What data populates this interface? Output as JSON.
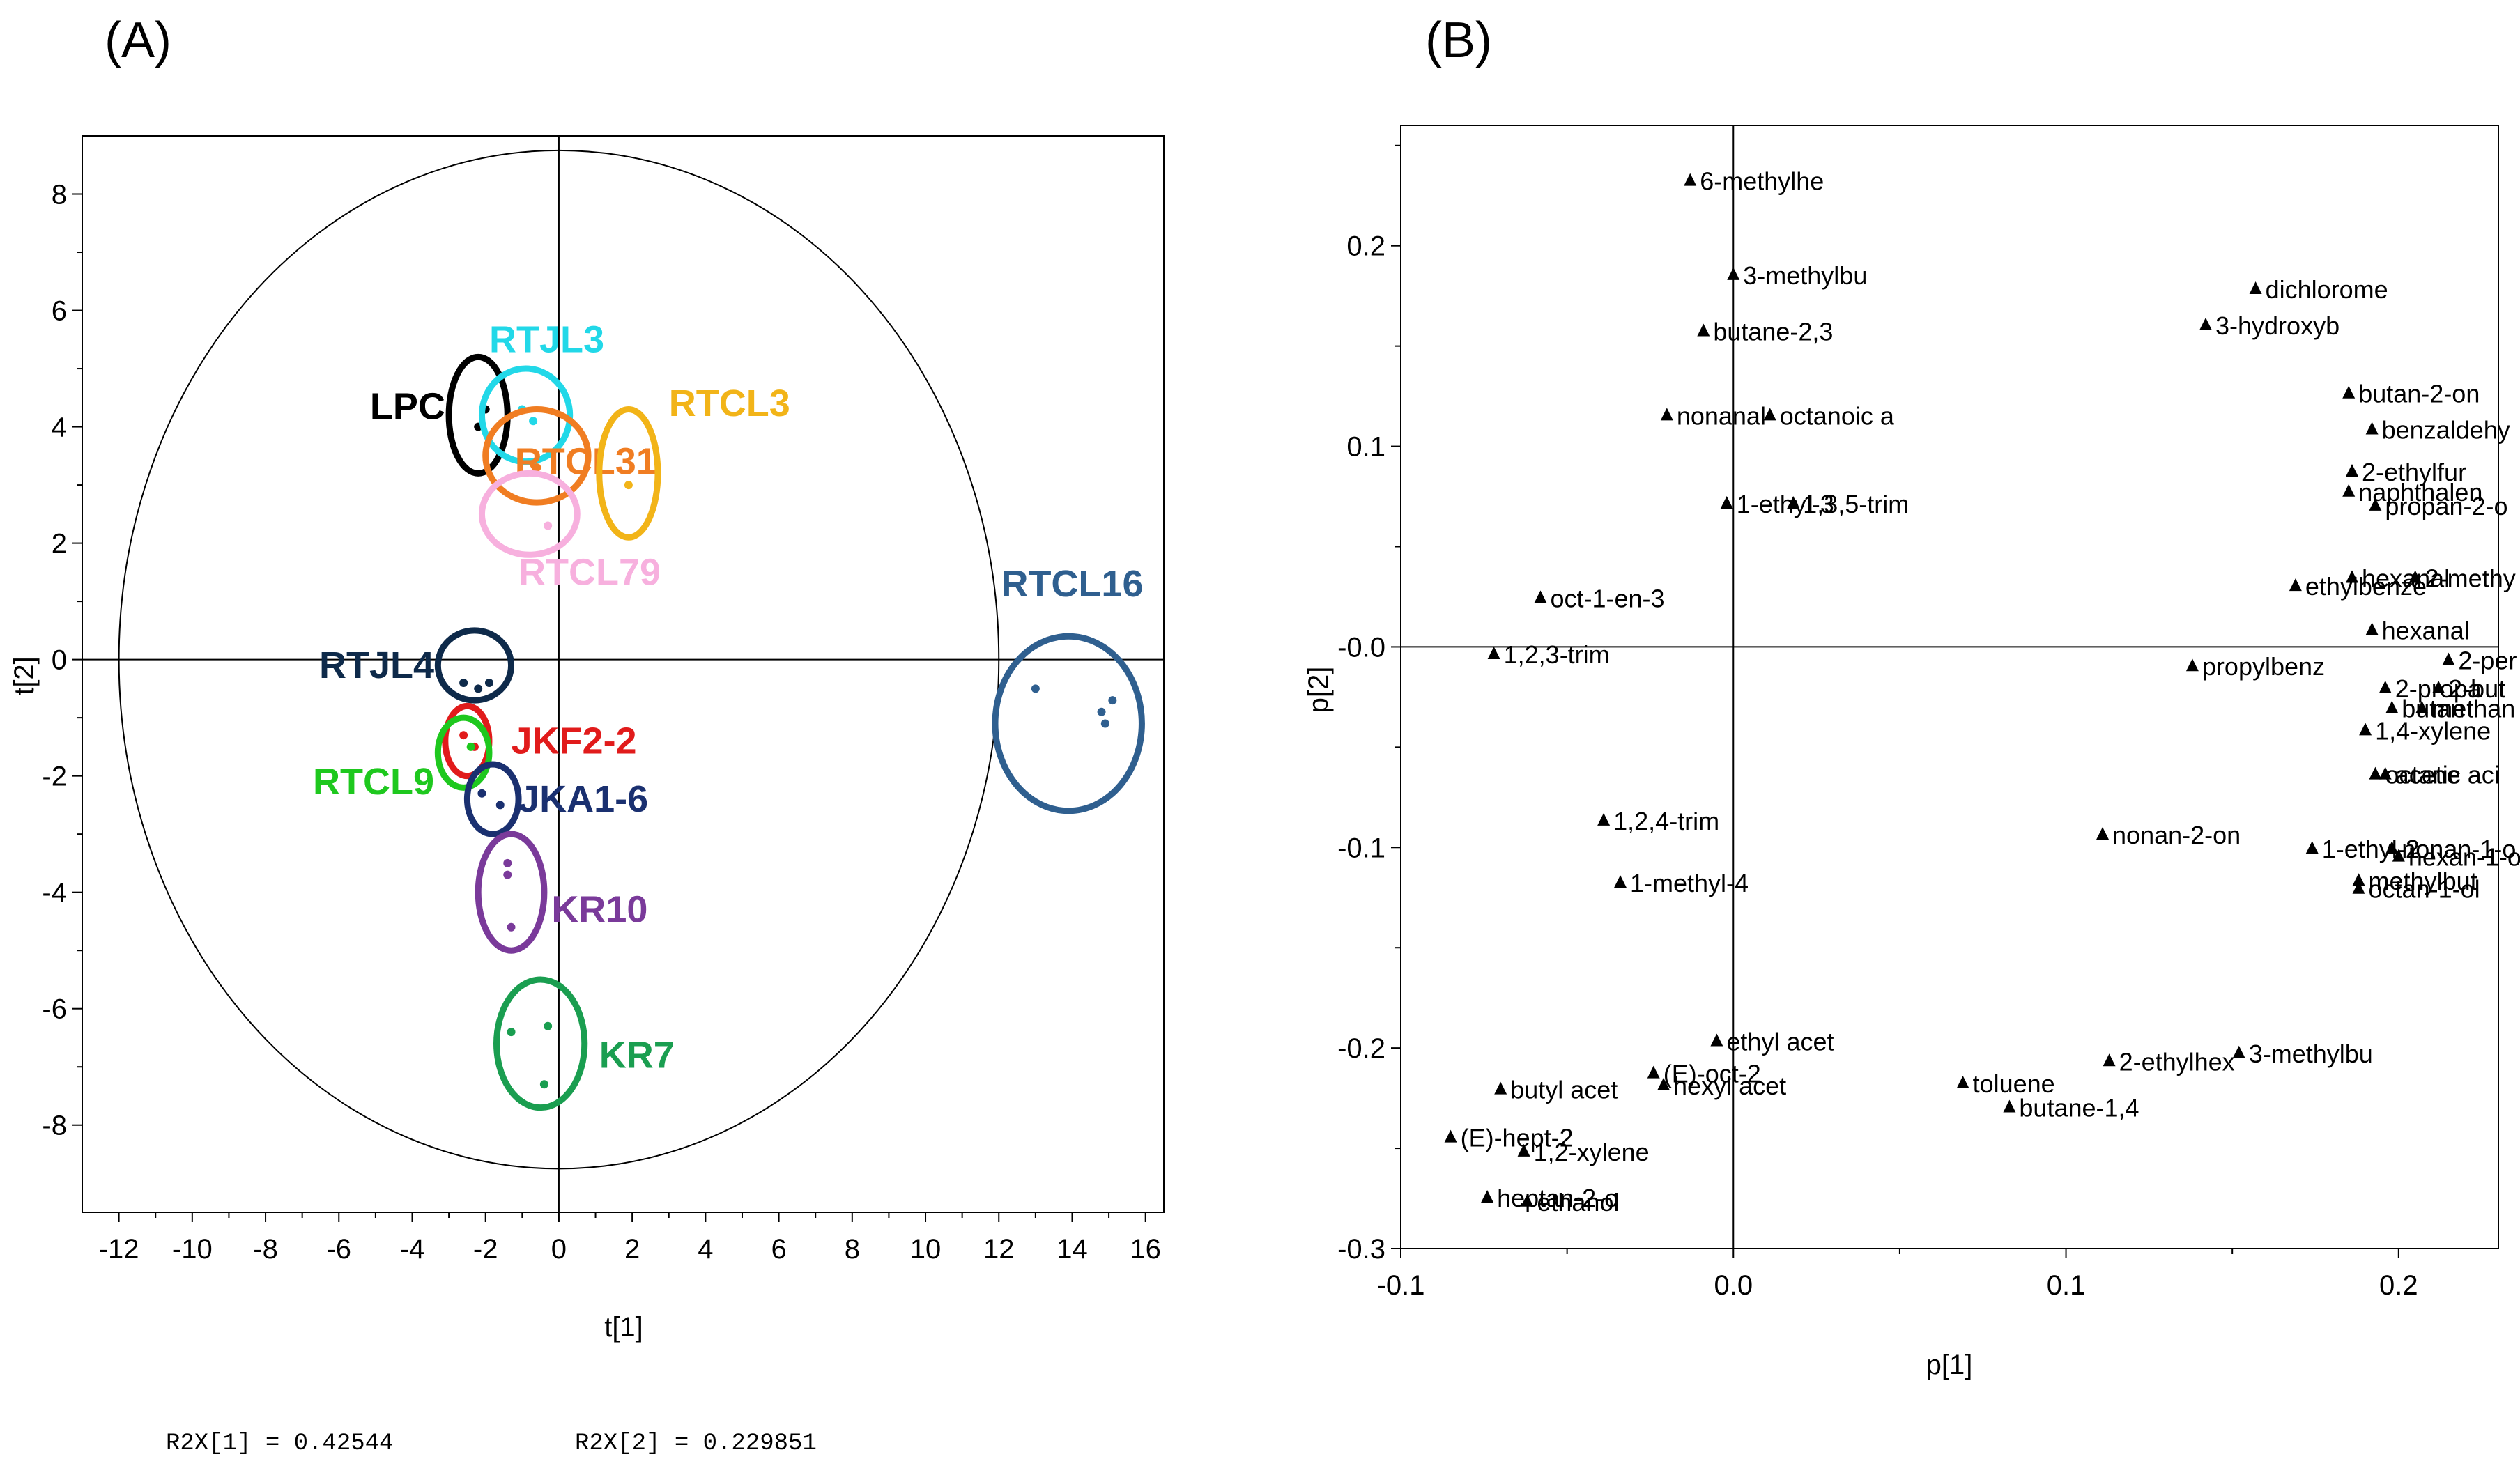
{
  "panel_labels": {
    "a": "(A)",
    "b": "(B)"
  },
  "r2x": {
    "r1": "R2X[1] = 0.42544",
    "r2": "R2X[2] = 0.229851"
  },
  "chart_data": [
    {
      "type": "scatter",
      "title": "(A)",
      "xlabel": "t[1]",
      "ylabel": "t[2]",
      "xlim": [
        -13,
        16.5
      ],
      "ylim": [
        -9.5,
        9
      ],
      "xticks": [
        -12,
        -10,
        -8,
        -6,
        -4,
        -2,
        0,
        2,
        4,
        6,
        8,
        10,
        12,
        14,
        16
      ],
      "yticks": [
        -8,
        -6,
        -4,
        -2,
        0,
        2,
        4,
        6,
        8
      ],
      "hotelling_ellipse": {
        "center": [
          0,
          0
        ],
        "rx": 12,
        "ry": 8.75
      },
      "groups": [
        {
          "name": "LPC",
          "color": "#000000",
          "center": [
            -2.2,
            4.2
          ],
          "rx": 0.8,
          "ry": 1.0,
          "points": [
            [
              -2.2,
              4.0
            ],
            [
              -2.0,
              4.3
            ]
          ]
        },
        {
          "name": "RTJL3",
          "color": "#22d8e8",
          "center": [
            -0.9,
            4.2
          ],
          "rx": 1.2,
          "ry": 0.8,
          "points": [
            [
              -1.0,
              4.3
            ],
            [
              -0.7,
              4.1
            ]
          ]
        },
        {
          "name": "RTCL31",
          "color": "#f07d22",
          "center": [
            -0.6,
            3.5
          ],
          "rx": 1.4,
          "ry": 0.8,
          "points": [
            [
              -0.6,
              3.3
            ]
          ]
        },
        {
          "name": "RTCL3",
          "color": "#f2b418",
          "center": [
            1.9,
            3.2
          ],
          "rx": 0.8,
          "ry": 1.1,
          "points": [
            [
              1.9,
              3.0
            ]
          ]
        },
        {
          "name": "RTCL79",
          "color": "#f7b0de",
          "center": [
            -0.8,
            2.5
          ],
          "rx": 1.3,
          "ry": 0.7,
          "points": [
            [
              -0.3,
              2.3
            ]
          ]
        },
        {
          "name": "RTJL4",
          "color": "#0e2a4a",
          "center": [
            -2.3,
            -0.1
          ],
          "rx": 1.0,
          "ry": 0.6,
          "points": [
            [
              -2.6,
              -0.4
            ],
            [
              -2.2,
              -0.5
            ],
            [
              -1.9,
              -0.4
            ]
          ]
        },
        {
          "name": "JKF2-2",
          "color": "#e11b1b",
          "center": [
            -2.5,
            -1.4
          ],
          "rx": 0.6,
          "ry": 0.6,
          "points": [
            [
              -2.6,
              -1.3
            ],
            [
              -2.3,
              -1.5
            ]
          ]
        },
        {
          "name": "RTCL9",
          "color": "#1ec81e",
          "center": [
            -2.6,
            -1.6
          ],
          "rx": 0.7,
          "ry": 0.6,
          "points": [
            [
              -2.4,
              -1.5
            ]
          ]
        },
        {
          "name": "JKA1-6",
          "color": "#1a3070",
          "center": [
            -1.8,
            -2.4
          ],
          "rx": 0.7,
          "ry": 0.6,
          "points": [
            [
              -2.1,
              -2.3
            ],
            [
              -1.6,
              -2.5
            ]
          ]
        },
        {
          "name": "KR10",
          "color": "#7a3a9a",
          "center": [
            -1.3,
            -4.0
          ],
          "rx": 0.9,
          "ry": 1.0,
          "points": [
            [
              -1.4,
              -3.5
            ],
            [
              -1.4,
              -3.7
            ],
            [
              -1.3,
              -4.6
            ]
          ]
        },
        {
          "name": "KR7",
          "color": "#1a9e50",
          "center": [
            -0.5,
            -6.6
          ],
          "rx": 1.2,
          "ry": 1.1,
          "points": [
            [
              -1.3,
              -6.4
            ],
            [
              -0.3,
              -6.3
            ],
            [
              -0.4,
              -7.3
            ]
          ]
        },
        {
          "name": "RTCL16",
          "color": "#2f5f8f",
          "center": [
            13.9,
            -1.1
          ],
          "rx": 2.0,
          "ry": 1.5,
          "points": [
            [
              13.0,
              -0.5
            ],
            [
              14.8,
              -0.9
            ],
            [
              15.1,
              -0.7
            ],
            [
              14.9,
              -1.1
            ]
          ]
        }
      ]
    },
    {
      "type": "scatter",
      "title": "(B)",
      "xlabel": "p[1]",
      "ylabel": "p[2]",
      "xlim": [
        -0.1,
        0.23
      ],
      "ylim": [
        -0.3,
        0.26
      ],
      "xticks": [
        -0.1,
        0.0,
        0.1,
        0.2
      ],
      "yticks": [
        -0.3,
        -0.2,
        -0.1,
        -0.0,
        0.1,
        0.2
      ],
      "points": [
        {
          "label": "6-methylhe",
          "x": -0.013,
          "y": 0.232
        },
        {
          "label": "3-methylbu",
          "x": 0.0,
          "y": 0.185
        },
        {
          "label": "butane-2,3",
          "x": -0.009,
          "y": 0.157
        },
        {
          "label": "dichlorome",
          "x": 0.157,
          "y": 0.178
        },
        {
          "label": "3-hydroxyb",
          "x": 0.142,
          "y": 0.16
        },
        {
          "label": "nonanal",
          "x": -0.02,
          "y": 0.115
        },
        {
          "label": "octanoic a",
          "x": 0.011,
          "y": 0.115
        },
        {
          "label": "butan-2-on",
          "x": 0.185,
          "y": 0.126
        },
        {
          "label": "benzaldehy",
          "x": 0.192,
          "y": 0.108
        },
        {
          "label": "1-ethyl-3",
          "x": -0.002,
          "y": 0.071
        },
        {
          "label": "1,3,5-trim",
          "x": 0.018,
          "y": 0.071
        },
        {
          "label": "2-ethylfur",
          "x": 0.186,
          "y": 0.087
        },
        {
          "label": "naphthalen",
          "x": 0.185,
          "y": 0.077
        },
        {
          "label": "propan-2-o",
          "x": 0.193,
          "y": 0.07
        },
        {
          "label": "oct-1-en-3",
          "x": -0.058,
          "y": 0.024
        },
        {
          "label": "ethylbenze",
          "x": 0.169,
          "y": 0.03
        },
        {
          "label": "hexanal",
          "x": 0.186,
          "y": 0.034
        },
        {
          "label": "2-methy",
          "x": 0.205,
          "y": 0.034
        },
        {
          "label": "hexanal",
          "x": 0.192,
          "y": 0.008
        },
        {
          "label": "1,2,3-trim",
          "x": -0.072,
          "y": -0.004
        },
        {
          "label": "propylbenz",
          "x": 0.138,
          "y": -0.01
        },
        {
          "label": "2-per",
          "x": 0.215,
          "y": -0.007
        },
        {
          "label": "2-propa",
          "x": 0.196,
          "y": -0.021
        },
        {
          "label": "2-but",
          "x": 0.212,
          "y": -0.021
        },
        {
          "label": "butan",
          "x": 0.198,
          "y": -0.031
        },
        {
          "label": "methan",
          "x": 0.207,
          "y": -0.031
        },
        {
          "label": "1,4-xylene",
          "x": 0.19,
          "y": -0.042
        },
        {
          "label": "octane",
          "x": 0.193,
          "y": -0.064
        },
        {
          "label": "acetic aci",
          "x": 0.196,
          "y": -0.064
        },
        {
          "label": "1,2,4-trim",
          "x": -0.039,
          "y": -0.087
        },
        {
          "label": "nonan-2-on",
          "x": 0.111,
          "y": -0.094
        },
        {
          "label": "1-ethyl-2",
          "x": 0.174,
          "y": -0.101
        },
        {
          "label": "nonan-1-o",
          "x": 0.198,
          "y": -0.101
        },
        {
          "label": "hexan-1-ol",
          "x": 0.2,
          "y": -0.105
        },
        {
          "label": "1-methyl-4",
          "x": -0.034,
          "y": -0.118
        },
        {
          "label": "methylbut",
          "x": 0.188,
          "y": -0.117
        },
        {
          "label": "octan-1-ol",
          "x": 0.188,
          "y": -0.121
        },
        {
          "label": "ethyl acet",
          "x": -0.005,
          "y": -0.197
        },
        {
          "label": "(E)-oct-2",
          "x": -0.024,
          "y": -0.213
        },
        {
          "label": "hexyl acet",
          "x": -0.021,
          "y": -0.219
        },
        {
          "label": "2-ethylhex",
          "x": 0.113,
          "y": -0.207
        },
        {
          "label": "3-methylbu",
          "x": 0.152,
          "y": -0.203
        },
        {
          "label": "toluene",
          "x": 0.069,
          "y": -0.218
        },
        {
          "label": "butane-1,4",
          "x": 0.083,
          "y": -0.23
        },
        {
          "label": "butyl acet",
          "x": -0.07,
          "y": -0.221
        },
        {
          "label": "(E)-hept-2",
          "x": -0.085,
          "y": -0.245
        },
        {
          "label": "1,2-xylene",
          "x": -0.063,
          "y": -0.252
        },
        {
          "label": "heptan-2-o",
          "x": -0.074,
          "y": -0.275
        },
        {
          "label": "ethanol",
          "x": -0.062,
          "y": -0.277
        }
      ]
    }
  ]
}
